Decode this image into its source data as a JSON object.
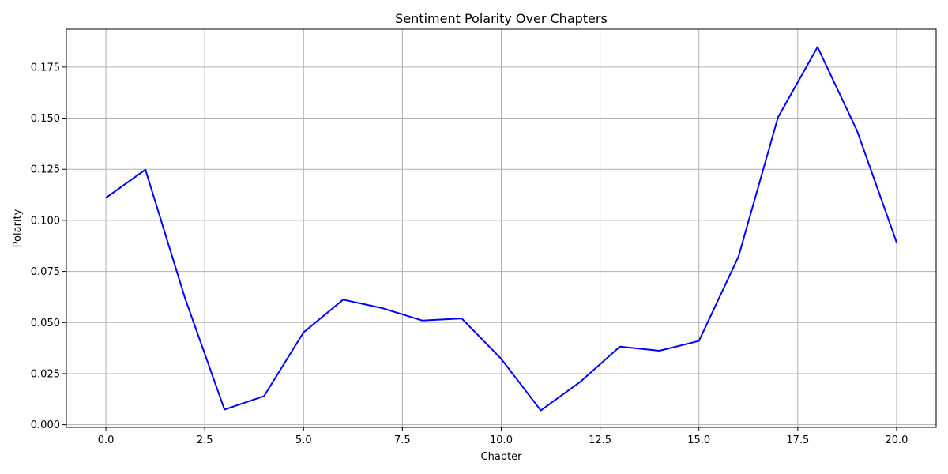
{
  "chart_data": {
    "type": "line",
    "title": "Sentiment Polarity Over Chapters",
    "xlabel": "Chapter",
    "ylabel": "Polarity",
    "xlim": [
      -1,
      21
    ],
    "ylim": [
      -0.0013,
      0.1935
    ],
    "xticks": [
      0.0,
      2.5,
      5.0,
      7.5,
      10.0,
      12.5,
      15.0,
      17.5,
      20.0
    ],
    "xtick_labels": [
      "0.0",
      "2.5",
      "5.0",
      "7.5",
      "10.0",
      "12.5",
      "15.0",
      "17.5",
      "20.0"
    ],
    "yticks": [
      0.0,
      0.025,
      0.05,
      0.075,
      0.1,
      0.125,
      0.15,
      0.175
    ],
    "ytick_labels": [
      "0.000",
      "0.025",
      "0.050",
      "0.075",
      "0.100",
      "0.125",
      "0.150",
      "0.175"
    ],
    "grid": true,
    "series": [
      {
        "color": "#0000ff",
        "x": [
          0,
          1,
          2,
          3,
          4,
          5,
          6,
          7,
          8,
          9,
          10,
          11,
          12,
          13,
          14,
          15,
          16,
          17,
          18,
          19,
          20
        ],
        "values": [
          0.111,
          0.1248,
          0.062,
          0.0074,
          0.014,
          0.0452,
          0.0612,
          0.057,
          0.051,
          0.052,
          0.0322,
          0.007,
          0.021,
          0.0382,
          0.0362,
          0.041,
          0.0822,
          0.1504,
          0.1848,
          0.1438,
          0.0892
        ]
      }
    ]
  }
}
